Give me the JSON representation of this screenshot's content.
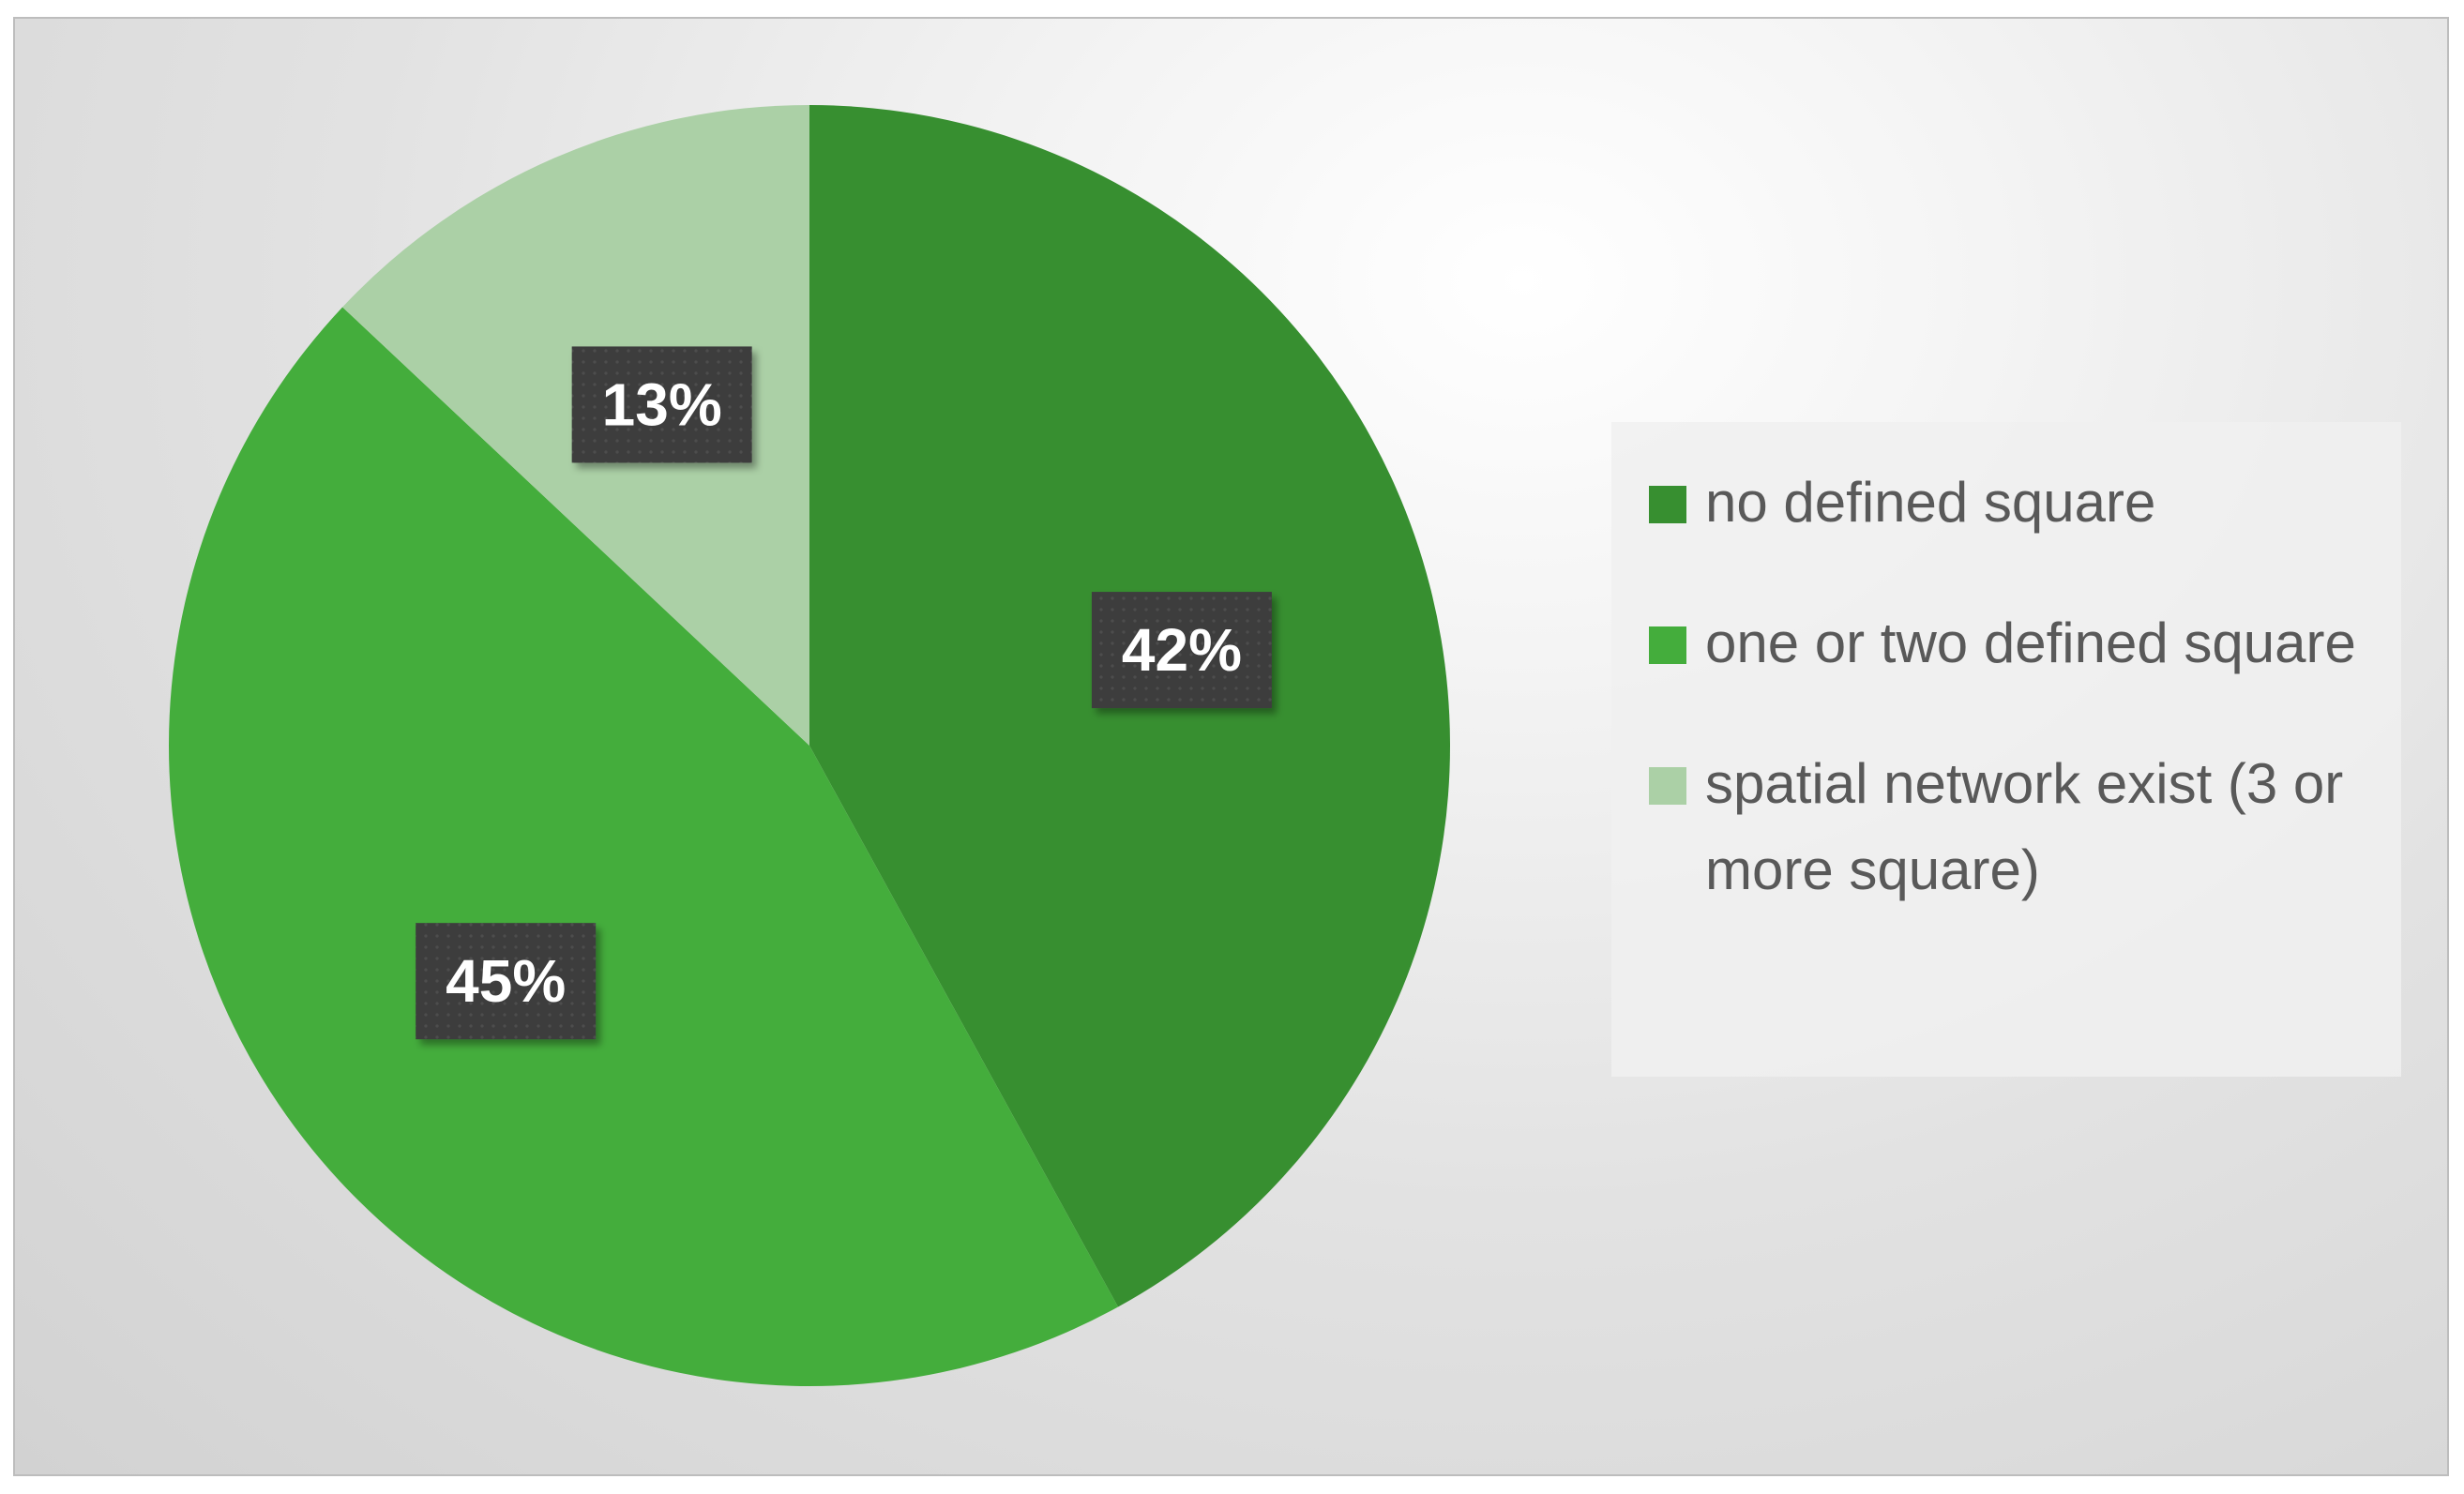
{
  "chart_data": {
    "type": "pie",
    "categories": [
      "no defined square",
      "one or two defined square",
      "spatial network exist (3 or more square)"
    ],
    "values": [
      42,
      45,
      13
    ],
    "labels": [
      "42%",
      "45%",
      "13%"
    ],
    "colors": [
      "#378f30",
      "#44ad3c",
      "#abd0a6"
    ],
    "start_angle": "12 o'clock, clockwise",
    "legend_position": "right",
    "data_label_style": "white bold text on dark grey boxes"
  }
}
